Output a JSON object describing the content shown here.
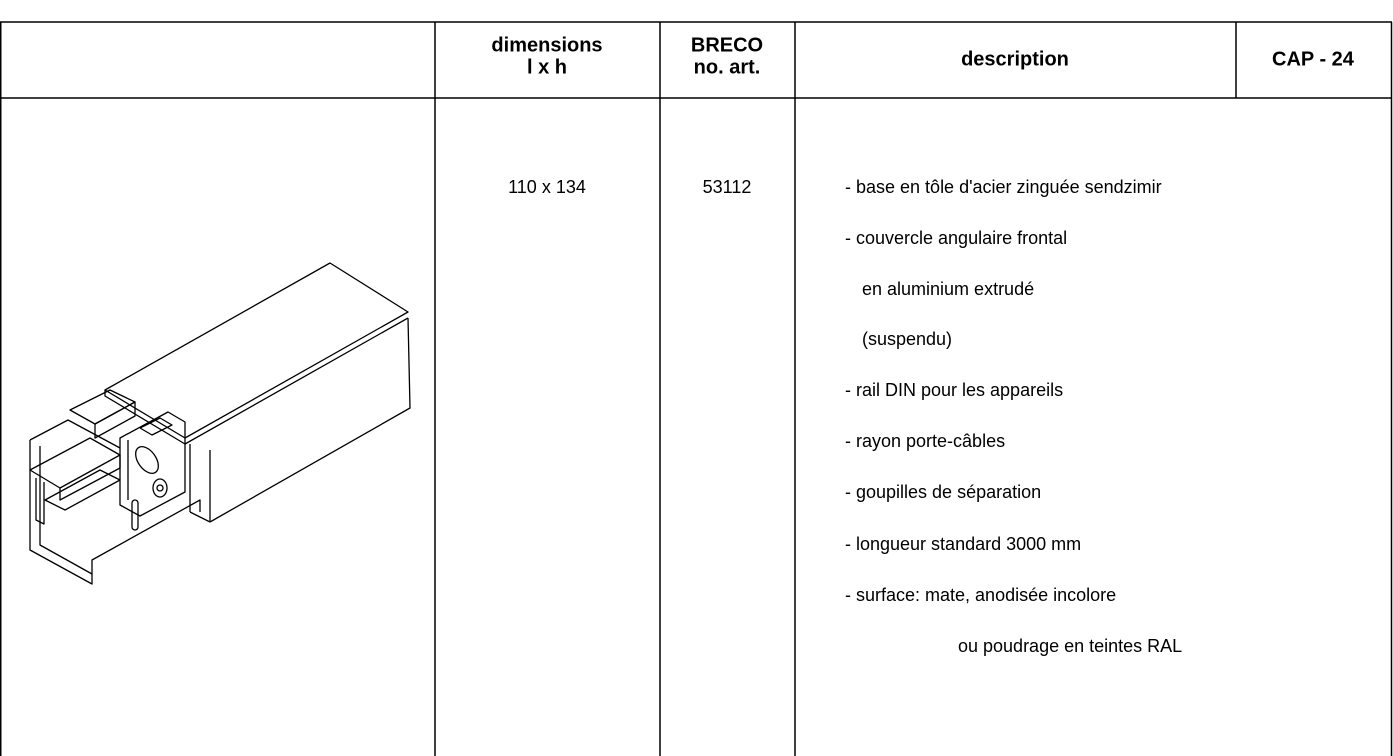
{
  "table": {
    "headers": [
      [
        "dimensions",
        "l x h"
      ],
      [
        "BRECO",
        "no. art."
      ],
      "description",
      "CAP - 24"
    ],
    "rows": [
      {
        "dimensions": "110 x 134",
        "article": "53112",
        "description": [
          "- base en tôle d'acier zinguée sendzimir",
          "- couvercle angulaire frontal",
          "en aluminium extrudé",
          "(suspendu)",
          "- rail DIN pour les appareils",
          "- rayon porte-câbles",
          "- goupilles de séparation",
          "- longueur standard 3000 mm",
          "- surface: mate, anodisée incolore",
          "ou poudrage en teintes RAL"
        ]
      }
    ]
  }
}
